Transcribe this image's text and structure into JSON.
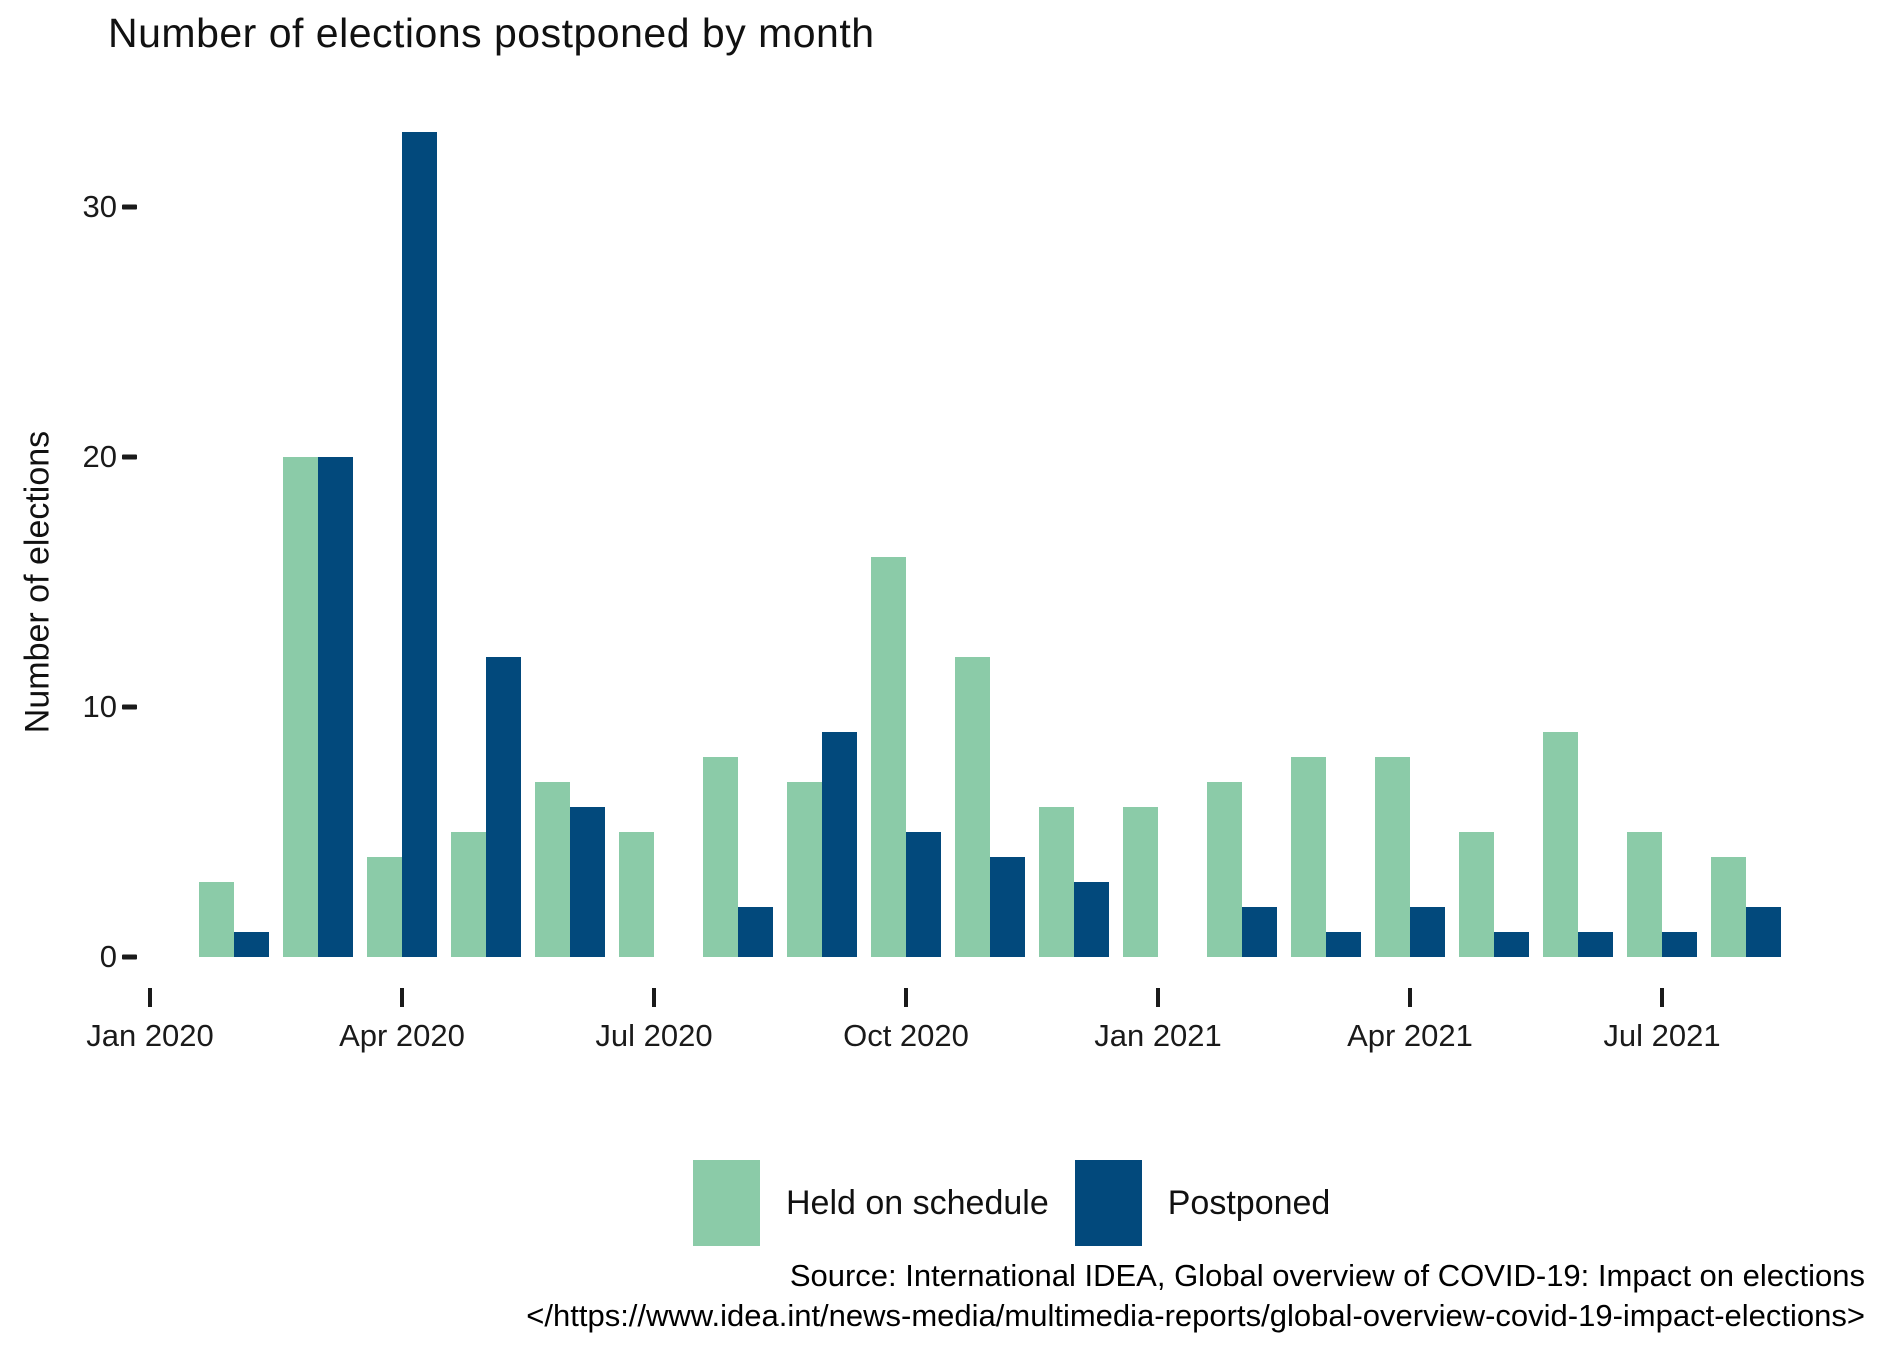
{
  "title": "Number of elections postponed by month",
  "y_axis_title": "Number of elections",
  "legend": {
    "held_label": "Held on schedule",
    "postponed_label": "Postponed"
  },
  "source": {
    "line1": "Source: International IDEA, Global overview of COVID-19: Impact on elections",
    "line2": "</https://www.idea.int/news-media/multimedia-reports/global-overview-covid-19-impact-elections>"
  },
  "colors": {
    "held": "#8BCBA8",
    "postponed": "#02497C",
    "tick": "#1a1a1a"
  },
  "chart_data": {
    "type": "bar",
    "title": "Number of elections postponed by month",
    "ylabel": "Number of elections",
    "xlabel": "",
    "ylim": [
      0,
      33
    ],
    "grid": false,
    "legend_position": "bottom",
    "categories": [
      "Feb 2020",
      "Mar 2020",
      "Apr 2020",
      "May 2020",
      "Jun 2020",
      "Jul 2020",
      "Aug 2020",
      "Sep 2020",
      "Oct 2020",
      "Nov 2020",
      "Dec 2020",
      "Jan 2021",
      "Feb 2021",
      "Mar 2021",
      "Apr 2021",
      "May 2021",
      "Jun 2021",
      "Jul 2021",
      "Aug 2021"
    ],
    "series": [
      {
        "name": "Held on schedule",
        "color": "#8BCBA8",
        "values": [
          3,
          20,
          4,
          5,
          7,
          5,
          8,
          7,
          16,
          12,
          6,
          6,
          7,
          8,
          8,
          5,
          9,
          5,
          4
        ]
      },
      {
        "name": "Postponed",
        "color": "#02497C",
        "values": [
          1,
          20,
          33,
          12,
          6,
          0,
          2,
          9,
          5,
          4,
          3,
          0,
          2,
          1,
          2,
          1,
          1,
          1,
          2
        ]
      }
    ],
    "x_tick_labels": [
      "Jan 2020",
      "Apr 2020",
      "Jul 2020",
      "Oct 2020",
      "Jan 2021",
      "Apr 2021",
      "Jul 2021"
    ],
    "y_ticks": [
      0,
      10,
      20,
      30
    ]
  }
}
